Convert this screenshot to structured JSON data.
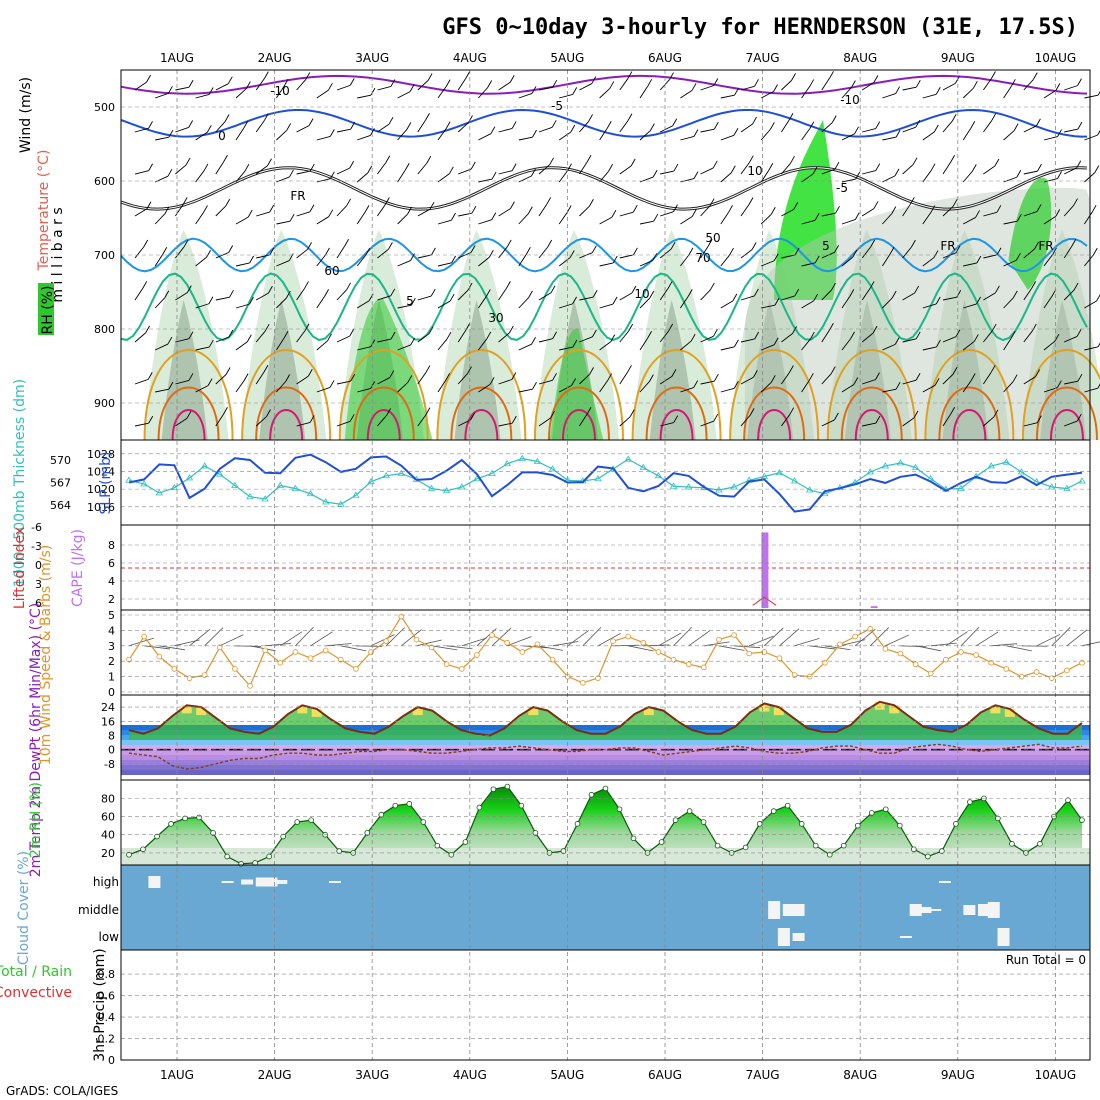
{
  "title": "GFS 0~10day 3-hourly for HERNDERSON (31E, 17.5S)",
  "footer": "GrADS: COLA/IGES",
  "colors": {
    "wind_barb": "#000000",
    "temp_minus10": "#8a1cb8",
    "temp_minus5": "#1f4fd6",
    "temp_0": "#1f4fd6",
    "temp_5": "#1c95e6",
    "temp_10": "#18b888",
    "temp_15": "#e0a020",
    "temp_20": "#e06a10",
    "temp_25": "#d81870",
    "rh_shade": "#2ec82e",
    "slp": "#1f4fd6",
    "thickness": "#30c0c0",
    "cape": "#c070f0",
    "lifted_index": "#e03030",
    "wind10m": "#e0952a",
    "cloud_bg": "#6aa8d4",
    "precip_total": "#2ec82e",
    "precip_conv": "#e03030"
  },
  "chart_data": [
    {
      "panel": "upper-air",
      "type": "heatmap",
      "x": [
        "1AUG",
        "2AUG",
        "3AUG",
        "4AUG",
        "5AUG",
        "6AUG",
        "7AUG",
        "8AUG",
        "9AUG",
        "10AUG"
      ],
      "ylabel": "m i l l i b a r s",
      "yticks": [
        500,
        600,
        700,
        800,
        900
      ],
      "ylim": [
        950,
        450
      ],
      "legend_rh": "RH (%)",
      "legend_temperature": "Temperature (°C)",
      "legend_wind": "Wind (m/s)",
      "contour_labels": [
        "-10",
        "-5",
        "0",
        "5",
        "10",
        "-10",
        "-5",
        "5",
        "10",
        "30",
        "50",
        "60",
        "70",
        "FR",
        "FR",
        "FR"
      ]
    },
    {
      "panel": "slp-thickness",
      "type": "line",
      "ylabel_left": "1000~500mb Thickness (dm)",
      "ylabel_right": "SLP (mb)",
      "yticks_left": [
        564,
        567,
        570
      ],
      "yticks_right": [
        1016,
        1020,
        1024,
        1028
      ],
      "series": [
        {
          "name": "SLP",
          "values": [
            1021.5,
            1022.2,
            1025.6,
            1025.4,
            1018,
            1020.1,
            1024.6,
            1027,
            1026.6,
            1023.7,
            1023.6,
            1027.1,
            1027.8,
            1026.1,
            1023.9,
            1024.6,
            1027.2,
            1027.4,
            1025.3,
            1022.1,
            1022.3,
            1024.2,
            1026.6,
            1023.4,
            1018.4,
            1020.9,
            1023.8,
            1023.8,
            1023.2,
            1021.5,
            1021.6,
            1025.1,
            1024.7,
            1020.3,
            1019.5,
            1020.7,
            1023.6,
            1023,
            1020.5,
            1018.5,
            1018.3,
            1021.7,
            1022.2,
            1018.9,
            1014.9,
            1015.4,
            1019.5,
            1020.2,
            1021.1,
            1022.3,
            1021.4,
            1022.8,
            1023.3,
            1021.7,
            1019.6,
            1021.4,
            1022.8,
            1021.6,
            1021.4,
            1022.9,
            1020.9,
            1022.8,
            1023.3,
            1023.7
          ]
        },
        {
          "name": "1000~500mb Thickness",
          "values": [
            567.3,
            566.8,
            565.6,
            566.3,
            567.6,
            569.2,
            568.1,
            566.6,
            565.1,
            564.8,
            566.6,
            566.2,
            565.5,
            564.4,
            564.1,
            565.3,
            567.1,
            567.9,
            568.2,
            567.4,
            566.2,
            565.9,
            566.4,
            567.5,
            568.2,
            569.5,
            570.2,
            569.8,
            568.8,
            567.3,
            567.2,
            567.5,
            568.8,
            570.1,
            569,
            567.9,
            566.5,
            566.4,
            566.3,
            566,
            566.4,
            567.3,
            567.8,
            568.3,
            567.2,
            566,
            565.5,
            566.3,
            567,
            568.4,
            569.2,
            569.6,
            569,
            567.5,
            566.1,
            566.2,
            567.8,
            569.2,
            569.7,
            568.4,
            567.1,
            566.4,
            566.2,
            567.2
          ]
        }
      ]
    },
    {
      "panel": "lifted-cape",
      "type": "bar",
      "ylabel_left": "Lifted Index",
      "ylabel_right": "CAPE (J/kg)",
      "yticks_left": [
        "-6",
        "-3",
        "0",
        "3",
        "6"
      ],
      "yticks_right": [
        2,
        4,
        6,
        8
      ],
      "series": [
        {
          "name": "CAPE",
          "points": [
            {
              "x": 6.5,
              "y": 9.4
            },
            {
              "x": 7.62,
              "y": 1.2
            }
          ]
        },
        {
          "name": "Lifted Index",
          "points": [
            {
              "x": 6.38,
              "y": 5.8
            },
            {
              "x": 6.5,
              "y": 5.2
            },
            {
              "x": 6.62,
              "y": 5.8
            }
          ]
        }
      ],
      "lifted_zero": 0
    },
    {
      "panel": "wind10m",
      "type": "line",
      "ylabel": "10m Wind Speed & Barbs (m/s)",
      "yticks": [
        0,
        1,
        2,
        3,
        4,
        5
      ],
      "ylim": [
        0,
        5
      ],
      "series": [
        {
          "name": "10m Wind Speed",
          "values": [
            2.1,
            3.6,
            2.3,
            1.5,
            0.9,
            1.1,
            2.9,
            1.5,
            0.4,
            2.7,
            1.9,
            2.6,
            2.2,
            2.7,
            2.1,
            1.5,
            2.6,
            3.3,
            4.9,
            3.4,
            2.9,
            1.8,
            1.5,
            2.4,
            3.7,
            3.2,
            2.6,
            3.1,
            2.1,
            1.0,
            0.6,
            0.9,
            3.3,
            3.6,
            3.2,
            2.6,
            2.1,
            1.8,
            1.6,
            3.4,
            3.7,
            2.5,
            2.6,
            2.2,
            1.1,
            1.0,
            1.9,
            3.1,
            3.6,
            4.1,
            2.8,
            2.5,
            1.8,
            1.2,
            2.1,
            2.6,
            2.4,
            1.9,
            1.5,
            1.0,
            1.3,
            0.9,
            1.4,
            1.9
          ]
        }
      ]
    },
    {
      "panel": "temp2m",
      "type": "area",
      "ylabel": "2m Temp 2m DewPt (6hr Min/Max) (°C)",
      "yticks": [
        -8,
        0,
        8,
        16,
        24
      ],
      "ylim": [
        -16,
        28
      ],
      "series": [
        {
          "name": "2m Temp",
          "values": [
            11,
            9,
            12,
            19,
            25,
            24,
            18,
            12,
            10,
            9,
            13,
            20,
            25,
            23,
            17,
            12,
            10,
            9,
            13,
            19,
            24,
            22,
            16,
            11,
            9,
            8,
            12,
            19,
            24,
            22,
            16,
            11,
            9,
            9,
            13,
            20,
            24,
            22,
            16,
            11,
            9,
            9,
            13,
            21,
            26,
            24,
            18,
            12,
            10,
            10,
            14,
            22,
            27,
            25,
            19,
            13,
            11,
            10,
            14,
            21,
            25,
            23,
            17,
            12,
            9,
            9,
            15
          ]
        },
        {
          "name": "2m DewPt",
          "values": [
            -2,
            -3,
            -4,
            -9,
            -11,
            -10,
            -8,
            -6,
            -5,
            -5,
            -3,
            -2,
            -2,
            -3,
            -3,
            -2,
            -1,
            -1,
            0,
            0,
            -1,
            -2,
            -2,
            -1,
            0,
            1,
            1,
            2,
            1,
            0,
            -1,
            -1,
            0,
            0,
            1,
            1,
            -1,
            -3,
            -2,
            -1,
            0,
            1,
            2,
            1,
            -1,
            -2,
            -2,
            -1,
            1,
            2,
            2,
            0,
            -2,
            -2,
            1,
            2,
            3,
            2,
            0,
            -1,
            0,
            1,
            2,
            3,
            1,
            1,
            2
          ]
        }
      ]
    },
    {
      "panel": "rh2m",
      "type": "area",
      "ylabel": "2m RH (%)",
      "yticks": [
        20,
        40,
        60,
        80
      ],
      "ylim": [
        10,
        98
      ],
      "series": [
        {
          "name": "2m RH",
          "values": [
            18,
            24,
            38,
            52,
            58,
            59,
            42,
            16,
            8,
            9,
            16,
            38,
            54,
            56,
            40,
            22,
            20,
            42,
            62,
            72,
            74,
            54,
            28,
            18,
            32,
            70,
            90,
            93,
            72,
            42,
            20,
            22,
            52,
            84,
            91,
            68,
            36,
            20,
            32,
            56,
            66,
            54,
            28,
            20,
            26,
            52,
            66,
            72,
            52,
            28,
            18,
            28,
            50,
            64,
            68,
            50,
            24,
            16,
            22,
            52,
            76,
            80,
            58,
            30,
            20,
            30,
            60,
            78,
            56
          ]
        }
      ]
    },
    {
      "panel": "cloud",
      "type": "bar",
      "ylabel": "Cloud Cover (%)",
      "yticks": [
        "high",
        "middle",
        "low"
      ],
      "series": [
        {
          "name": "high",
          "points": [
            {
              "x": 0.25,
              "y": 60
            },
            {
              "x": 1.0,
              "y": 10
            },
            {
              "x": 1.2,
              "y": 25
            },
            {
              "x": 1.35,
              "y": 45
            },
            {
              "x": 1.45,
              "y": 45
            },
            {
              "x": 1.55,
              "y": 20
            },
            {
              "x": 2.1,
              "y": 10
            },
            {
              "x": 8.35,
              "y": 10
            }
          ]
        },
        {
          "name": "middle",
          "points": [
            {
              "x": 6.6,
              "y": 90
            },
            {
              "x": 6.75,
              "y": 60
            },
            {
              "x": 6.85,
              "y": 60
            },
            {
              "x": 8.05,
              "y": 60
            },
            {
              "x": 8.15,
              "y": 30
            },
            {
              "x": 8.25,
              "y": 10
            },
            {
              "x": 8.6,
              "y": 50
            },
            {
              "x": 8.75,
              "y": 60
            },
            {
              "x": 8.85,
              "y": 80
            }
          ]
        },
        {
          "name": "low",
          "points": [
            {
              "x": 6.7,
              "y": 90
            },
            {
              "x": 6.85,
              "y": 40
            },
            {
              "x": 7.95,
              "y": 10
            },
            {
              "x": 8.95,
              "y": 90
            }
          ]
        }
      ]
    },
    {
      "panel": "precip",
      "type": "bar",
      "ylabel": "3hr Precip (mm)",
      "legend_left": "Total / Rain",
      "legend_left2": "Convective",
      "yticks": [
        0,
        0.2,
        0.4,
        0.6,
        0.8
      ],
      "ylim": [
        0,
        0.95
      ],
      "run_total": "Run Total = 0",
      "series": [
        {
          "name": "3hr Precip",
          "values": []
        }
      ]
    }
  ]
}
